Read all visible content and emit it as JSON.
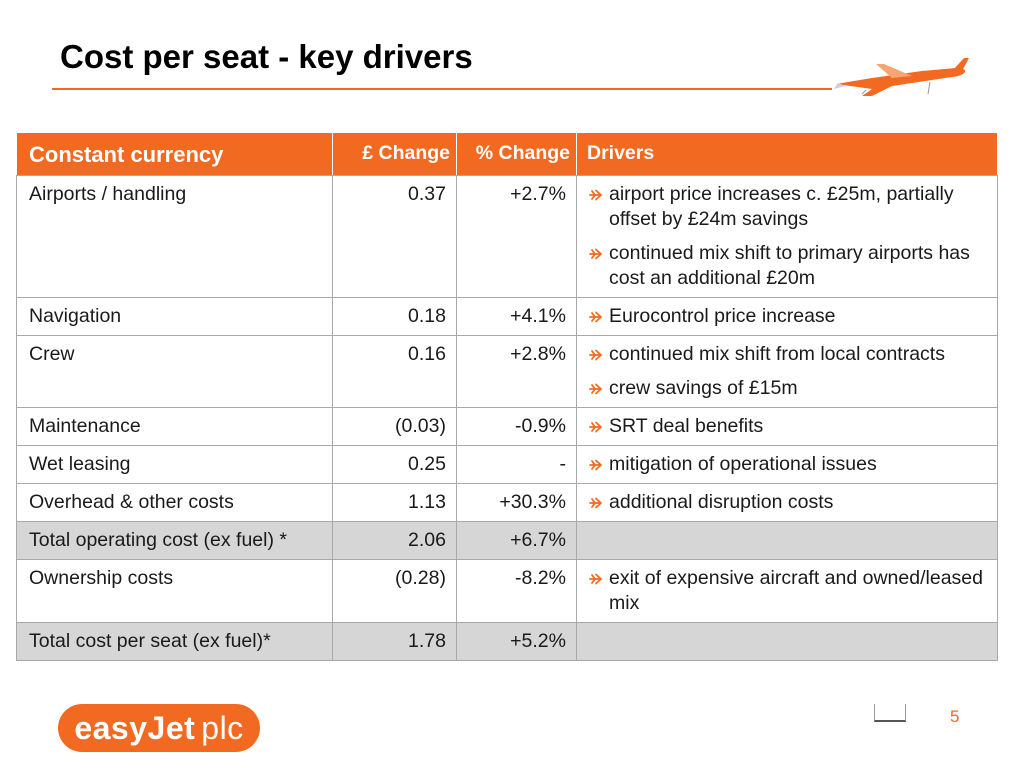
{
  "slide": {
    "title": "Cost per seat - key drivers",
    "page_number": "5",
    "accent_color": "#f26a21"
  },
  "logo": {
    "brand": "easyJet",
    "suffix": "plc"
  },
  "table": {
    "headers": {
      "label": "Constant currency",
      "gbp_change": "£ Change",
      "pct_change": "% Change",
      "drivers": "Drivers"
    },
    "rows": [
      {
        "label": "Airports / handling",
        "gbp": "0.37",
        "pct": "+2.7%",
        "drivers": [
          "airport price increases c. £25m, partially offset by £24m savings",
          "continued mix shift to primary airports has cost an additional £20m"
        ]
      },
      {
        "label": "Navigation",
        "gbp": "0.18",
        "pct": "+4.1%",
        "drivers": [
          "Eurocontrol price increase"
        ]
      },
      {
        "label": "Crew",
        "gbp": "0.16",
        "pct": "+2.8%",
        "drivers": [
          "continued mix shift from local contracts",
          "crew savings of £15m"
        ]
      },
      {
        "label": "Maintenance",
        "gbp": "(0.03)",
        "pct": "-0.9%",
        "drivers": [
          "SRT deal benefits"
        ]
      },
      {
        "label": "Wet leasing",
        "gbp": "0.25",
        "pct": "-",
        "drivers": [
          "mitigation of operational issues"
        ]
      },
      {
        "label": "Overhead & other costs",
        "gbp": "1.13",
        "pct": "+30.3%",
        "drivers": [
          "additional disruption costs"
        ]
      },
      {
        "label": "Total operating cost (ex fuel) *",
        "gbp": "2.06",
        "pct": "+6.7%",
        "drivers": [],
        "total": true
      },
      {
        "label": "Ownership costs",
        "gbp": "(0.28)",
        "pct": "-8.2%",
        "drivers": [
          "exit of expensive aircraft and owned/leased mix"
        ]
      },
      {
        "label": "Total cost per seat (ex fuel)*",
        "gbp": "1.78",
        "pct": "+5.2%",
        "drivers": [],
        "total": true
      }
    ]
  }
}
